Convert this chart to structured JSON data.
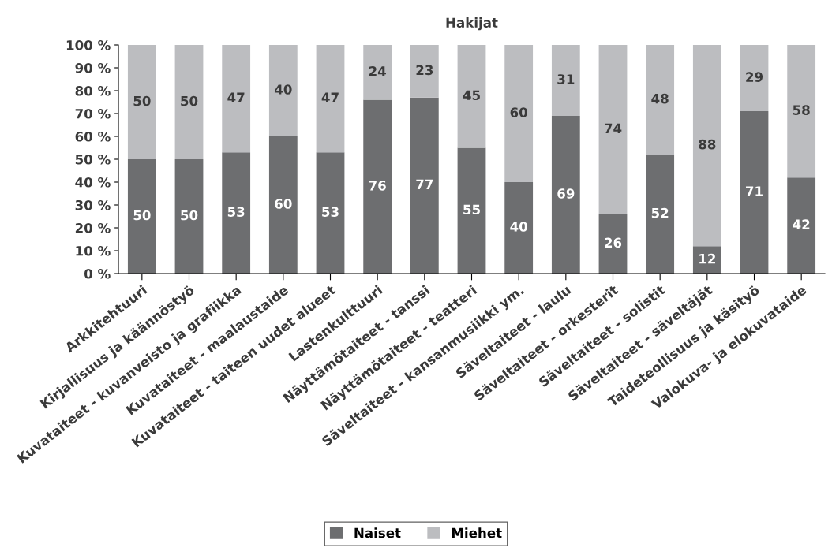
{
  "chart_data": {
    "type": "bar",
    "title": "Hakijat",
    "stacked": true,
    "data_labels": true,
    "legend": "bottom",
    "grid": false,
    "categories": [
      "Arkkitehtuuri",
      "Kirjallisuus ja käännöstyö",
      "Kuvataiteet - kuvanveisto ja grafiikka",
      "Kuvataiteet - maalaustaide",
      "Kuvataiteet - taiteen uudet alueet",
      "Lastenkulttuuri",
      "Näyttämötaiteet - tanssi",
      "Näyttämötaiteet - teatteri",
      "Säveltaiteet - kansanmusiikki ym.",
      "Säveltaiteet - laulu",
      "Säveltaiteet - orkesterit",
      "Säveltaiteet - solistit",
      "Säveltaiteet - säveltäjät",
      "Taideteollisuus ja käsityö",
      "Valokuva- ja elokuvataide"
    ],
    "series": [
      {
        "name": "Naiset",
        "color": "#6d6e70",
        "values": [
          50,
          50,
          53,
          60,
          53,
          76,
          77,
          55,
          40,
          69,
          26,
          52,
          12,
          71,
          42
        ]
      },
      {
        "name": "Miehet",
        "color": "#bcbdc0",
        "values": [
          50,
          50,
          47,
          40,
          47,
          24,
          23,
          45,
          60,
          31,
          74,
          48,
          88,
          29,
          58
        ]
      }
    ],
    "ylim": [
      0,
      100
    ],
    "yticks": [
      {
        "value": 0,
        "label": "0 %"
      },
      {
        "value": 10,
        "label": "10 %"
      },
      {
        "value": 20,
        "label": "20 %"
      },
      {
        "value": 30,
        "label": "30 %"
      },
      {
        "value": 40,
        "label": "40 %"
      },
      {
        "value": 50,
        "label": "50 %"
      },
      {
        "value": 60,
        "label": "60 %"
      },
      {
        "value": 70,
        "label": "70 %"
      },
      {
        "value": 80,
        "label": "80 %"
      },
      {
        "value": 90,
        "label": "90 %"
      },
      {
        "value": 100,
        "label": "100 %"
      }
    ]
  }
}
